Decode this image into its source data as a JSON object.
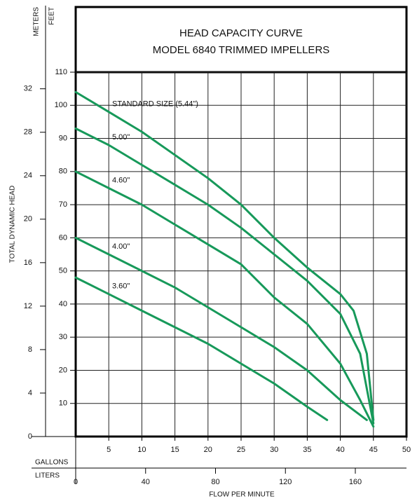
{
  "chart_data": {
    "type": "line",
    "title": "HEAD CAPACITY CURVE",
    "subtitle": "MODEL 6840 TRIMMED IMPELLERS",
    "y_label": "TOTAL DYNAMIC HEAD",
    "y_unit_label": "FEET",
    "y2_unit_label": "METERS",
    "x_label": "FLOW PER MINUTE",
    "x_unit_label": "GALLONS",
    "x2_unit_label": "LITERS",
    "xlim": [
      0,
      50
    ],
    "xticks": [
      5,
      10,
      15,
      20,
      25,
      30,
      35,
      40,
      45,
      50
    ],
    "x2lim": [
      0,
      189.27
    ],
    "x2ticks": [
      0,
      40,
      80,
      120,
      160
    ],
    "ylim": [
      0,
      110
    ],
    "yticks": [
      10,
      20,
      30,
      40,
      50,
      60,
      70,
      80,
      90,
      100,
      110
    ],
    "y2lim": [
      0,
      33.528
    ],
    "y2ticks": [
      0,
      4,
      8,
      12,
      16,
      20,
      24,
      28,
      32
    ],
    "grid": true,
    "series": [
      {
        "name": "STANDARD SIZE (5.44\")",
        "color": "#17995a",
        "x": [
          0,
          5,
          10,
          15,
          20,
          25,
          30,
          35,
          40,
          42,
          44,
          45
        ],
        "values": [
          104,
          98,
          92,
          85,
          78,
          70,
          60,
          51,
          43,
          38,
          25,
          5
        ]
      },
      {
        "name": "5.00\"",
        "color": "#17995a",
        "x": [
          0,
          5,
          10,
          15,
          20,
          25,
          30,
          35,
          40,
          43,
          45
        ],
        "values": [
          93,
          88,
          82,
          76,
          70,
          63,
          55,
          47,
          37,
          25,
          4
        ]
      },
      {
        "name": "4.60\"",
        "color": "#17995a",
        "x": [
          0,
          5,
          10,
          15,
          20,
          25,
          30,
          35,
          40,
          43,
          45
        ],
        "values": [
          80,
          75,
          70,
          64,
          58,
          52,
          42,
          34,
          22,
          11,
          3
        ]
      },
      {
        "name": "4.00\"",
        "color": "#17995a",
        "x": [
          0,
          5,
          10,
          15,
          20,
          25,
          30,
          35,
          40,
          44
        ],
        "values": [
          60,
          55,
          50,
          45,
          39,
          33,
          27,
          20,
          11,
          5
        ]
      },
      {
        "name": "3.60\"",
        "color": "#17995a",
        "x": [
          0,
          5,
          10,
          15,
          20,
          25,
          30,
          35,
          38
        ],
        "values": [
          48,
          43,
          38,
          33,
          28,
          22,
          16,
          9,
          5
        ]
      }
    ]
  }
}
